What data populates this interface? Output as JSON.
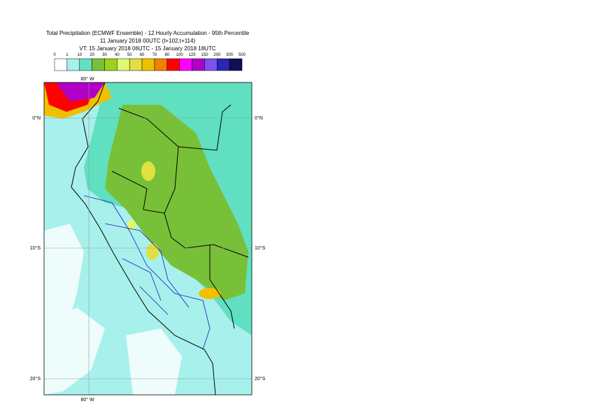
{
  "title": {
    "line1": "Total Precipitation (ECMWF Ensemble) - 12 Hourly Accumulation - 95th Percentile",
    "line2": "11 January 2018 00UTC (t+102,t+114)",
    "line3": "VT: 15 January 2018 06UTC - 15 January 2018 18UTC"
  },
  "legend": {
    "levels": [
      0,
      1,
      10,
      20,
      30,
      40,
      50,
      60,
      70,
      80,
      100,
      125,
      150,
      200,
      300,
      500
    ],
    "colors": [
      "#ffffff",
      "#a8f0ec",
      "#60e0c0",
      "#78c038",
      "#a0d020",
      "#e0f870",
      "#e0e040",
      "#f0c000",
      "#f08000",
      "#ff0000",
      "#ff00ff",
      "#b000c8",
      "#8050f0",
      "#2828b0",
      "#101050"
    ]
  },
  "map": {
    "lon_top": "80° W",
    "lon_bottom": "80° W",
    "lat_left": [
      "0°N",
      "10°S",
      "20°S"
    ],
    "lat_right": [
      "0°N",
      "10°S",
      "20°S"
    ]
  }
}
